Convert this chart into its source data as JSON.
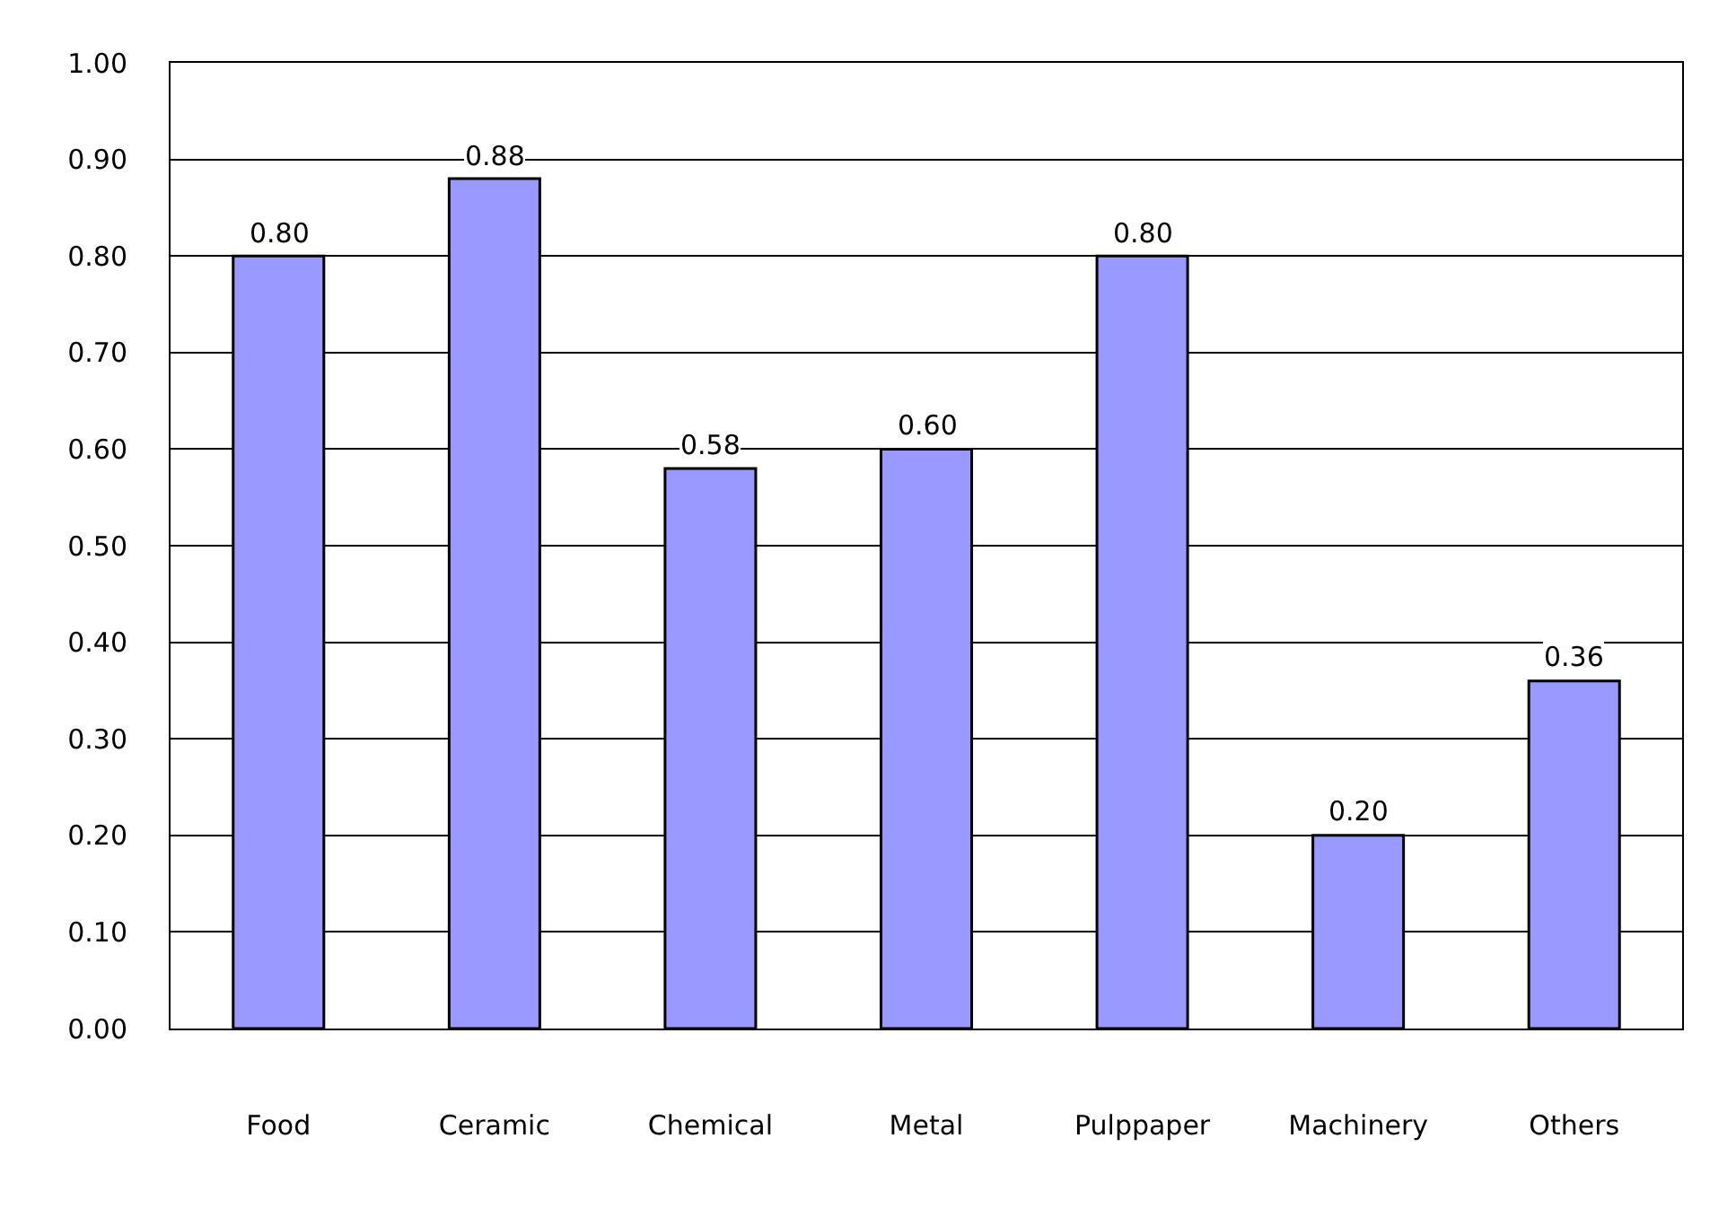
{
  "chart_data": {
    "type": "bar",
    "categories": [
      "Food",
      "Ceramic",
      "Chemical",
      "Metal",
      "Pulppaper",
      "Machinery",
      "Others"
    ],
    "values": [
      0.8,
      0.88,
      0.58,
      0.6,
      0.8,
      0.2,
      0.36
    ],
    "color": "#9999ff",
    "ylim": [
      0,
      1
    ],
    "yticks": [
      {
        "value": 0,
        "label": "0.00"
      },
      {
        "value": 0.1,
        "label": "0.10"
      },
      {
        "value": 0.2,
        "label": "0.20"
      },
      {
        "value": 0.3,
        "label": "0.30"
      },
      {
        "value": 0.4,
        "label": "0.40"
      },
      {
        "value": 0.5,
        "label": "0.50"
      },
      {
        "value": 0.6,
        "label": "0.60"
      },
      {
        "value": 0.7,
        "label": "0.70"
      },
      {
        "value": 0.8,
        "label": "0.80"
      },
      {
        "value": 0.9,
        "label": "0.90"
      },
      {
        "value": 1.0,
        "label": "1.00"
      }
    ],
    "value_labels": [
      "0.80",
      "0.88",
      "0.58",
      "0.60",
      "0.80",
      "0.20",
      "0.36"
    ],
    "grid": "y"
  }
}
